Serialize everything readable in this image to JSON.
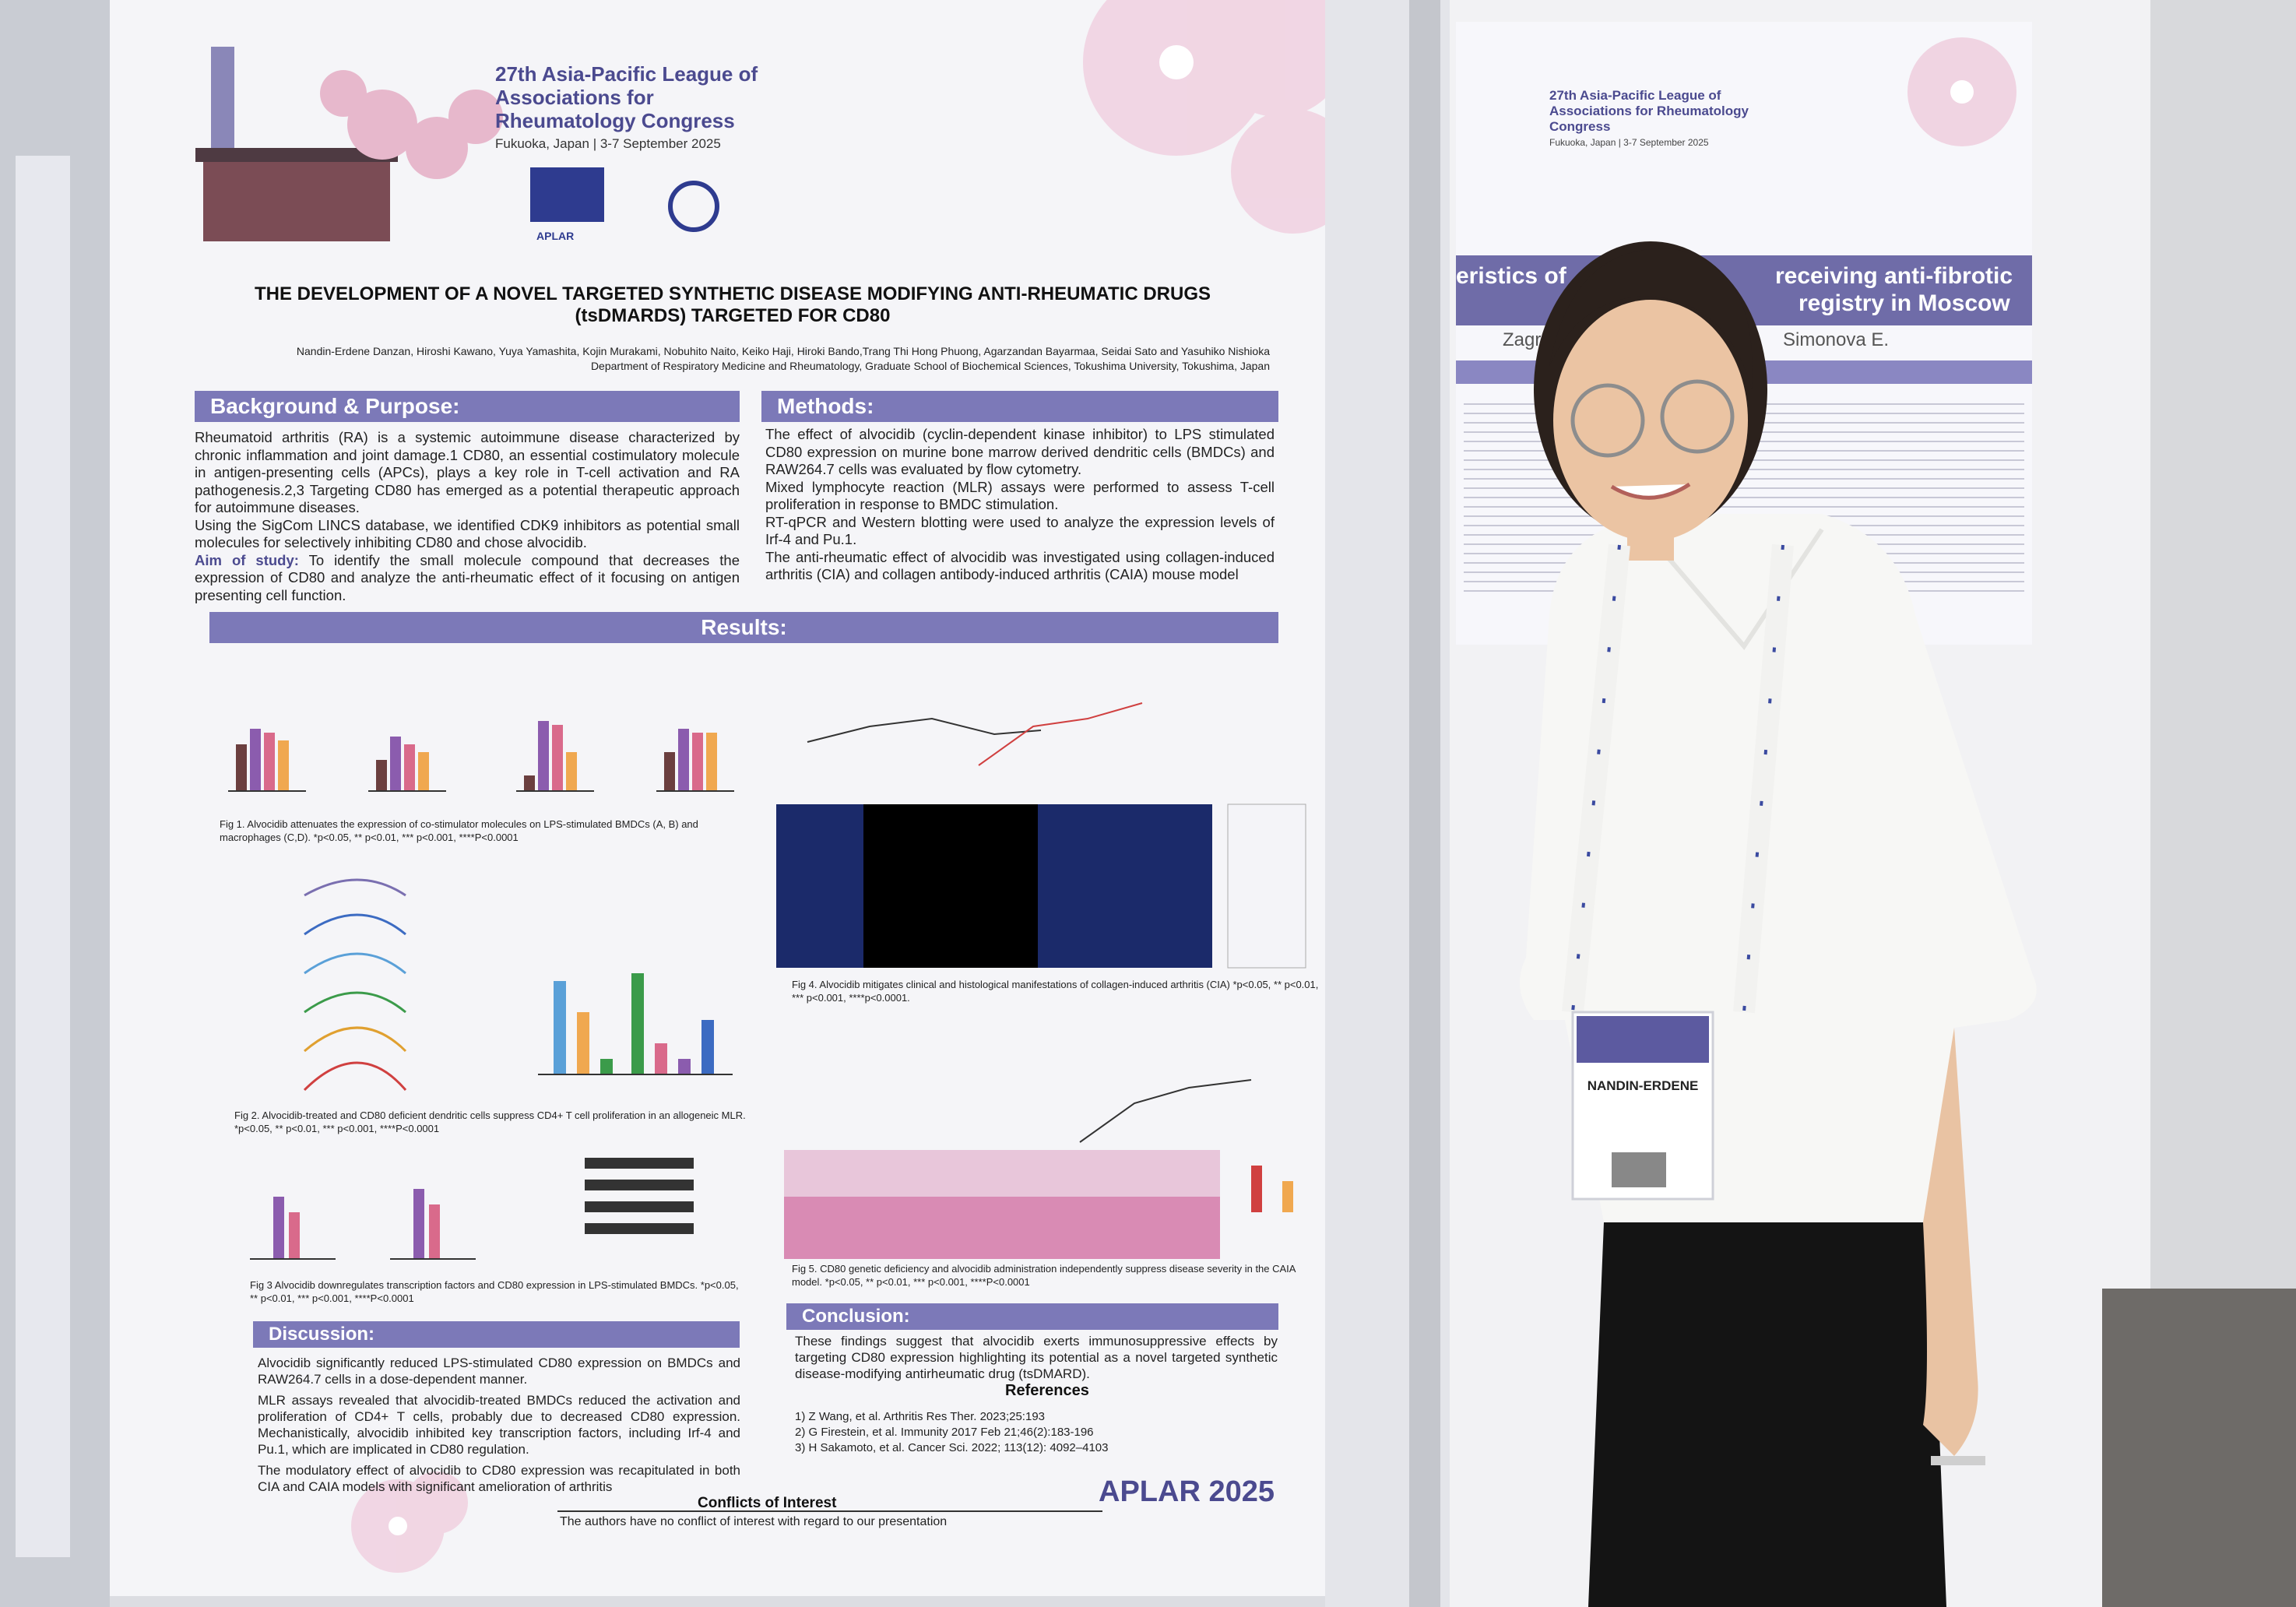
{
  "poster": {
    "congress": {
      "name": "27th Asia-Pacific League of Associations for Rheumatology Congress",
      "location": "Fukuoka, Japan | 3-7 September 2025",
      "logo": "APLAR"
    },
    "title": "THE DEVELOPMENT OF A NOVEL TARGETED SYNTHETIC DISEASE MODIFYING ANTI-RHEUMATIC DRUGS (tsDMARDS) TARGETED FOR CD80",
    "authors": "Nandin-Erdene Danzan, Hiroshi Kawano, Yuya Yamashita, Kojin Murakami, Nobuhito Naito, Keiko Haji, Hiroki Bando,Trang Thi Hong Phuong, Agarzandan Bayarmaa, Seidai Sato and Yasuhiko Nishioka",
    "affiliation": "Department of Respiratory Medicine and Rheumatology, Graduate School of Biochemical Sciences, Tokushima University, Tokushima, Japan",
    "background": {
      "heading": "Background & Purpose:",
      "paragraphs": [
        "Rheumatoid arthritis (RA) is a systemic autoimmune disease characterized by chronic inflammation and joint damage.1 CD80, an essential costimulatory molecule in antigen-presenting cells (APCs), plays a key role in T-cell activation and RA pathogenesis.2,3 Targeting CD80 has emerged as a potential therapeutic approach for autoimmune diseases.",
        "Using the SigCom LINCS database, we identified CDK9 inhibitors as potential small molecules for selectively inhibiting CD80 and chose alvocidib."
      ],
      "aim_label": "Aim of study:",
      "aim": "To identify the small molecule compound that decreases the expression of CD80 and analyze the anti-rheumatic effect of it focusing on antigen presenting cell function."
    },
    "methods": {
      "heading": "Methods:",
      "paragraphs": [
        "The effect of alvocidib (cyclin-dependent kinase inhibitor) to LPS stimulated CD80 expression on murine bone marrow derived dendritic cells (BMDCs) and RAW264.7 cells was evaluated by flow cytometry.",
        "Mixed lymphocyte reaction (MLR) assays were performed to assess T-cell proliferation in response to BMDC stimulation.",
        "RT-qPCR and Western blotting were used to analyze the expression levels of Irf-4 and Pu.1.",
        "The anti-rheumatic effect of alvocidib was investigated using collagen-induced arthritis (CIA) and collagen antibody-induced arthritis (CAIA) mouse model"
      ]
    },
    "results": {
      "heading": "Results:",
      "captions": [
        "Fig 1. Alvocidib attenuates the expression of co-stimulator molecules on LPS-stimulated BMDCs (A, B) and macrophages (C,D). *p<0.05, ** p<0.01, *** p<0.001, ****P<0.0001",
        "Fig 2. Alvocidib-treated and CD80 deficient dendritic cells suppress CD4+ T cell proliferation in an allogeneic MLR. *p<0.05, ** p<0.01, *** p<0.001, ****P<0.0001",
        "Fig 3 Alvocidib downregulates transcription factors and CD80 expression in LPS-stimulated BMDCs. *p<0.05, ** p<0.01, *** p<0.001, ****P<0.0001",
        "Fig 4. Alvocidib mitigates clinical and histological manifestations of collagen-induced arthritis (CIA) *p<0.05, ** p<0.01, *** p<0.001, ****p<0.0001.",
        "Fig 5. CD80 genetic deficiency and alvocidib administration independently suppress disease severity in the CAIA model. *p<0.05, ** p<0.01, *** p<0.001, ****P<0.0001"
      ]
    },
    "discussion": {
      "heading": "Discussion:",
      "paragraphs": [
        "Alvocidib significantly reduced LPS-stimulated CD80 expression on BMDCs and RAW264.7 cells in a dose-dependent manner.",
        "MLR assays revealed that alvocidib-treated BMDCs reduced the activation and proliferation of CD4+ T cells, probably due to decreased CD80 expression. Mechanistically, alvocidib inhibited key transcription factors, including Irf-4 and Pu.1, which are implicated in CD80 regulation.",
        "The modulatory effect of alvocidib to CD80 expression was recapitulated in both CIA and CAIA models with significant amelioration of arthritis"
      ]
    },
    "conclusion": {
      "heading": "Conclusion:",
      "text": "These findings suggest that alvocidib exerts immunosuppressive effects by targeting CD80 expression highlighting its potential as a novel targeted synthetic disease-modifying antirheumatic drug (tsDMARD)."
    },
    "references": {
      "heading": "References",
      "items": [
        "1) Z Wang, et al. Arthritis Res Ther. 2023;25:193",
        "2) G Firestein, et al. Immunity 2017 Feb 21;46(2):183-196",
        "3) H Sakamoto, et al. Cancer Sci. 2022; 113(12): 4092–4103"
      ]
    },
    "conflicts": {
      "heading": "Conflicts of Interest",
      "text": "The authors have no conflict of interest with regard to our presentation"
    },
    "footer": "APLAR 2025"
  },
  "neighbor_poster": {
    "fragments": [
      "eristics of",
      "receiving anti-fibrotic",
      "registry in Moscow",
      "Zagr",
      "Simonova E."
    ]
  },
  "badge": {
    "name": "NANDIN-ERDENE"
  }
}
